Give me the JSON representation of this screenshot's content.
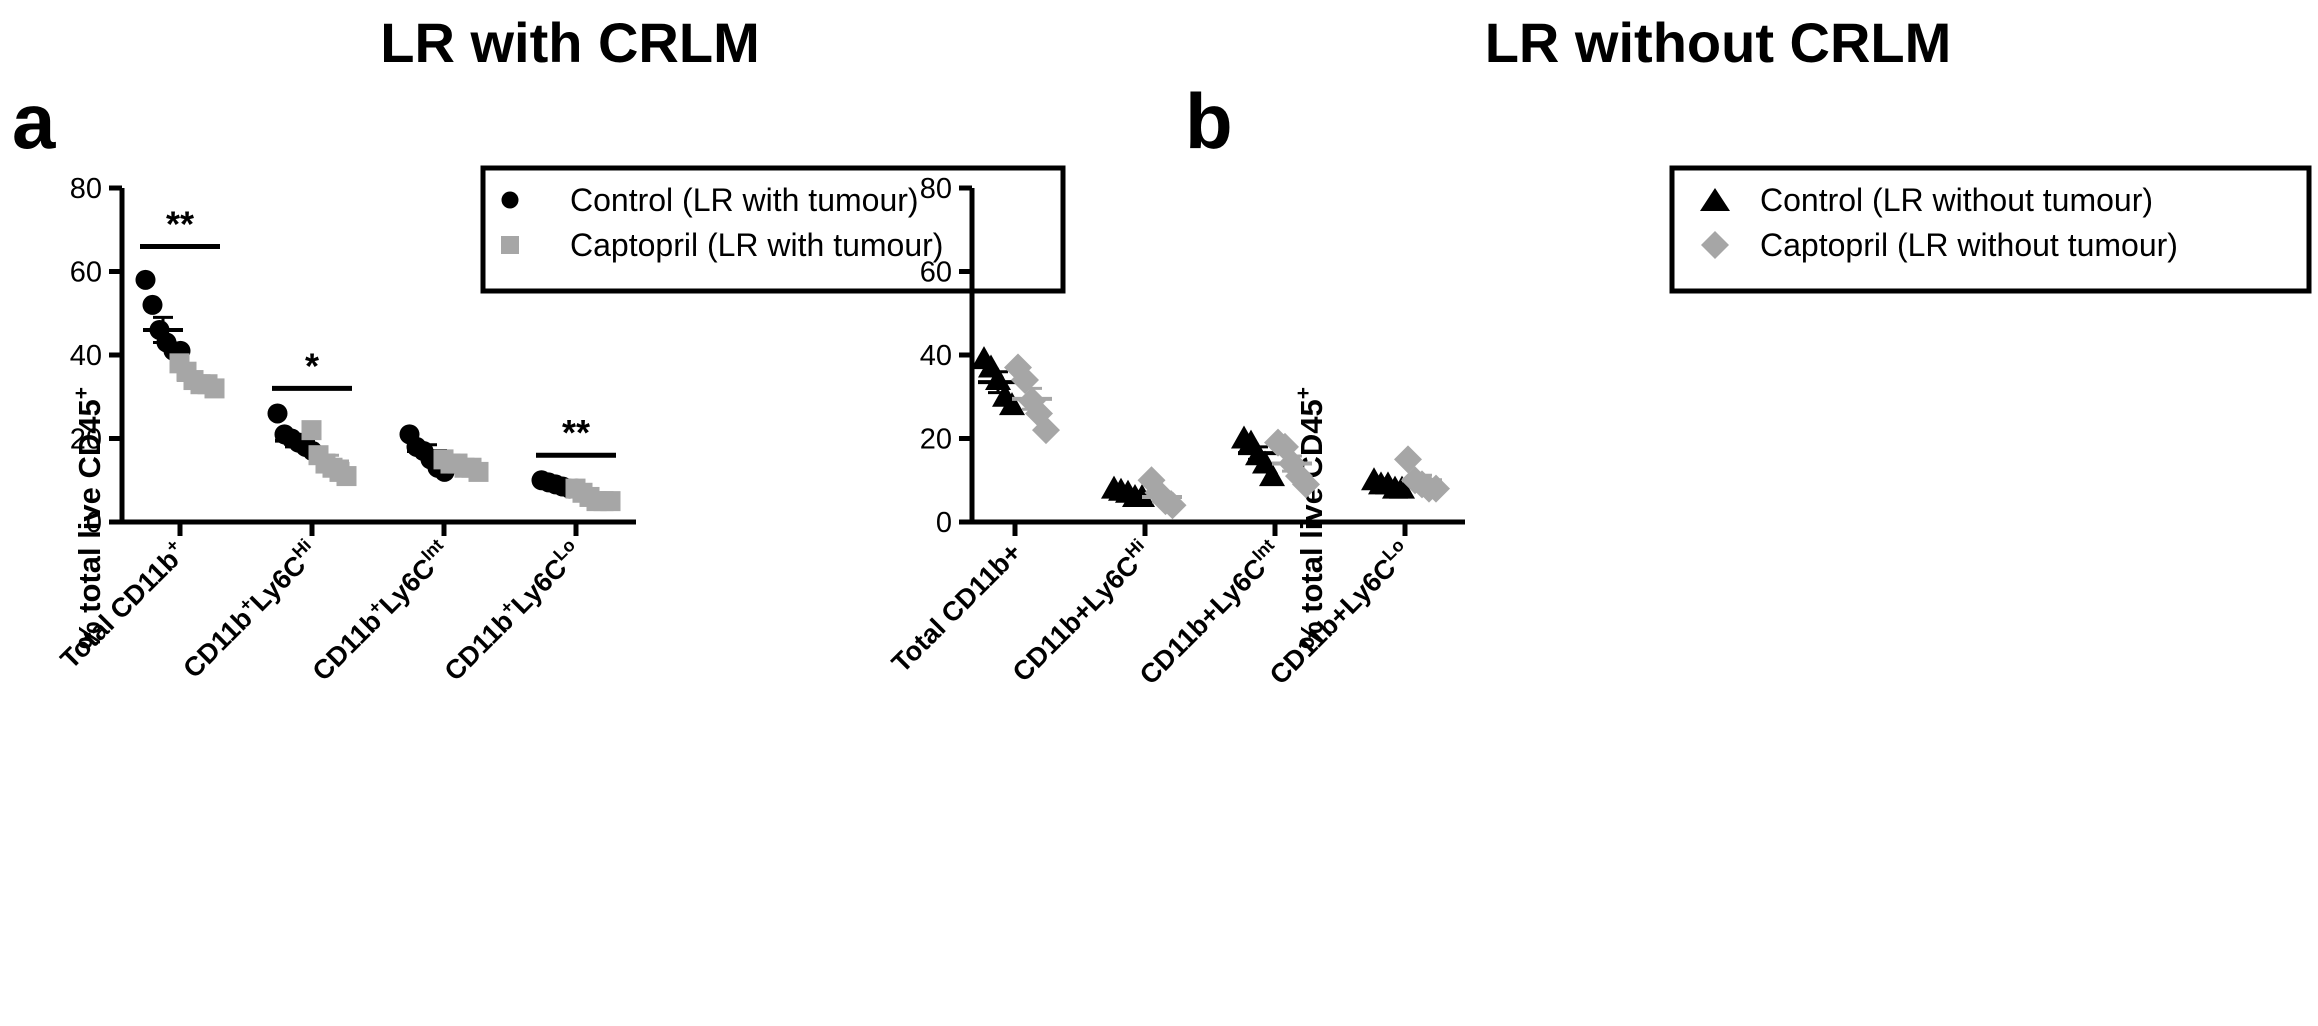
{
  "panels": [
    {
      "letter": "a",
      "title": "LR with CRLM",
      "ylabel_main": "% total live CD45",
      "ylabel_sup": "+",
      "legend": [
        "Control (LR with tumour)",
        "Captopril (LR with tumour)"
      ]
    },
    {
      "letter": "b",
      "title": "LR without CRLM",
      "ylabel_main": "% total live CD45",
      "ylabel_sup": "+",
      "legend": [
        "Control (LR without tumour)",
        "Captopril (LR without tumour)"
      ]
    }
  ],
  "colors": {
    "control": "#000000",
    "captopril": "#a6a6a6"
  },
  "chart_data": [
    {
      "type": "scatter",
      "title": "LR with CRLM",
      "ylabel": "% total live CD45+",
      "ylim": [
        0,
        80
      ],
      "yticks": [
        0,
        20,
        40,
        60,
        80
      ],
      "grid": false,
      "legend_position": "top-right",
      "categories": [
        {
          "text": "Total CD11b",
          "sup": "+",
          "parts": [
            [
              "Total CD11b",
              ""
            ],
            [
              "+",
              "sup"
            ]
          ]
        },
        {
          "text": "CD11b+Ly6CHi",
          "parts": [
            [
              "CD11b",
              ""
            ],
            [
              "+",
              "sup"
            ],
            [
              "Ly6C",
              ""
            ],
            [
              "Hi",
              "sup"
            ]
          ]
        },
        {
          "text": "CD11b+Ly6CInt",
          "parts": [
            [
              "CD11b",
              ""
            ],
            [
              "+",
              "sup"
            ],
            [
              "Ly6C",
              ""
            ],
            [
              "Int",
              "sup"
            ]
          ]
        },
        {
          "text": "CD11b+Ly6CLo",
          "parts": [
            [
              "CD11b",
              ""
            ],
            [
              "+",
              "sup"
            ],
            [
              "Ly6C",
              ""
            ],
            [
              "Lo",
              "sup"
            ]
          ]
        }
      ],
      "series": [
        {
          "name": "Control (LR with tumour)",
          "marker": "circle",
          "color": "#000000",
          "points": [
            [
              58,
              52,
              46,
              43,
              41,
              41
            ],
            [
              26,
              21,
              20,
              19,
              18,
              17
            ],
            [
              21,
              18,
              17,
              15,
              13,
              12
            ],
            [
              10,
              9.5,
              9,
              8.5,
              8,
              8
            ]
          ],
          "mean": [
            46,
            19.5,
            17,
            9
          ],
          "sem": [
            3,
            1.5,
            1.5,
            0.6
          ]
        },
        {
          "name": "Captopril (LR with tumour)",
          "marker": "square",
          "color": "#a6a6a6",
          "points": [
            [
              38,
              36,
              34,
              33,
              33,
              32
            ],
            [
              22,
              16,
              14,
              13,
              12,
              11
            ],
            [
              15,
              14,
              14,
              13,
              13,
              12
            ],
            [
              8,
              7,
              6,
              5,
              5,
              5
            ]
          ],
          "mean": [
            34,
            14.5,
            13.5,
            6
          ],
          "sem": [
            1,
            1.5,
            0.5,
            0.5
          ]
        }
      ],
      "significance": [
        {
          "category": 0,
          "label": "**",
          "y": 66
        },
        {
          "category": 1,
          "label": "*",
          "y": 32
        },
        {
          "category": 3,
          "label": "**",
          "y": 16
        }
      ]
    },
    {
      "type": "scatter",
      "title": "LR without CRLM",
      "ylabel": "% total live CD45+",
      "ylim": [
        0,
        80
      ],
      "yticks": [
        0,
        20,
        40,
        60,
        80
      ],
      "grid": false,
      "legend_position": "top-right",
      "categories": [
        {
          "text": "Total CD11b+",
          "parts": [
            [
              "Total CD11b+",
              ""
            ]
          ]
        },
        {
          "text": "CD11b+Ly6CHi",
          "parts": [
            [
              "CD11b+Ly6C",
              ""
            ],
            [
              "Hi",
              "sup"
            ]
          ]
        },
        {
          "text": "CD11b+Ly6CInt",
          "parts": [
            [
              "CD11b+Ly6C",
              ""
            ],
            [
              "Int",
              "sup"
            ]
          ]
        },
        {
          "text": "CD11b+Ly6CLo",
          "parts": [
            [
              "CD11b+Ly6C",
              ""
            ],
            [
              "Lo",
              "sup"
            ]
          ]
        }
      ],
      "series": [
        {
          "name": "Control (LR without tumour)",
          "marker": "triangle",
          "color": "#000000",
          "points": [
            [
              39,
              37,
              34,
              30,
              28
            ],
            [
              8,
              7.5,
              7,
              6,
              6
            ],
            [
              20,
              19,
              16,
              14,
              11
            ],
            [
              10,
              9,
              9,
              8,
              8
            ]
          ],
          "mean": [
            33.5,
            7,
            16.5,
            9
          ],
          "sem": [
            2.5,
            0.4,
            1.5,
            0.5
          ]
        },
        {
          "name": "Captopril (LR without tumour)",
          "marker": "diamond",
          "color": "#a6a6a6",
          "points": [
            [
              37,
              34,
              29,
              26,
              22
            ],
            [
              10,
              7,
              5,
              4
            ],
            [
              19,
              18,
              14,
              11,
              9
            ],
            [
              15,
              10,
              9,
              8,
              8
            ]
          ],
          "mean": [
            29.5,
            6,
            14,
            10
          ],
          "sem": [
            2.5,
            1.2,
            1.8,
            1.2
          ]
        }
      ],
      "significance": []
    }
  ]
}
